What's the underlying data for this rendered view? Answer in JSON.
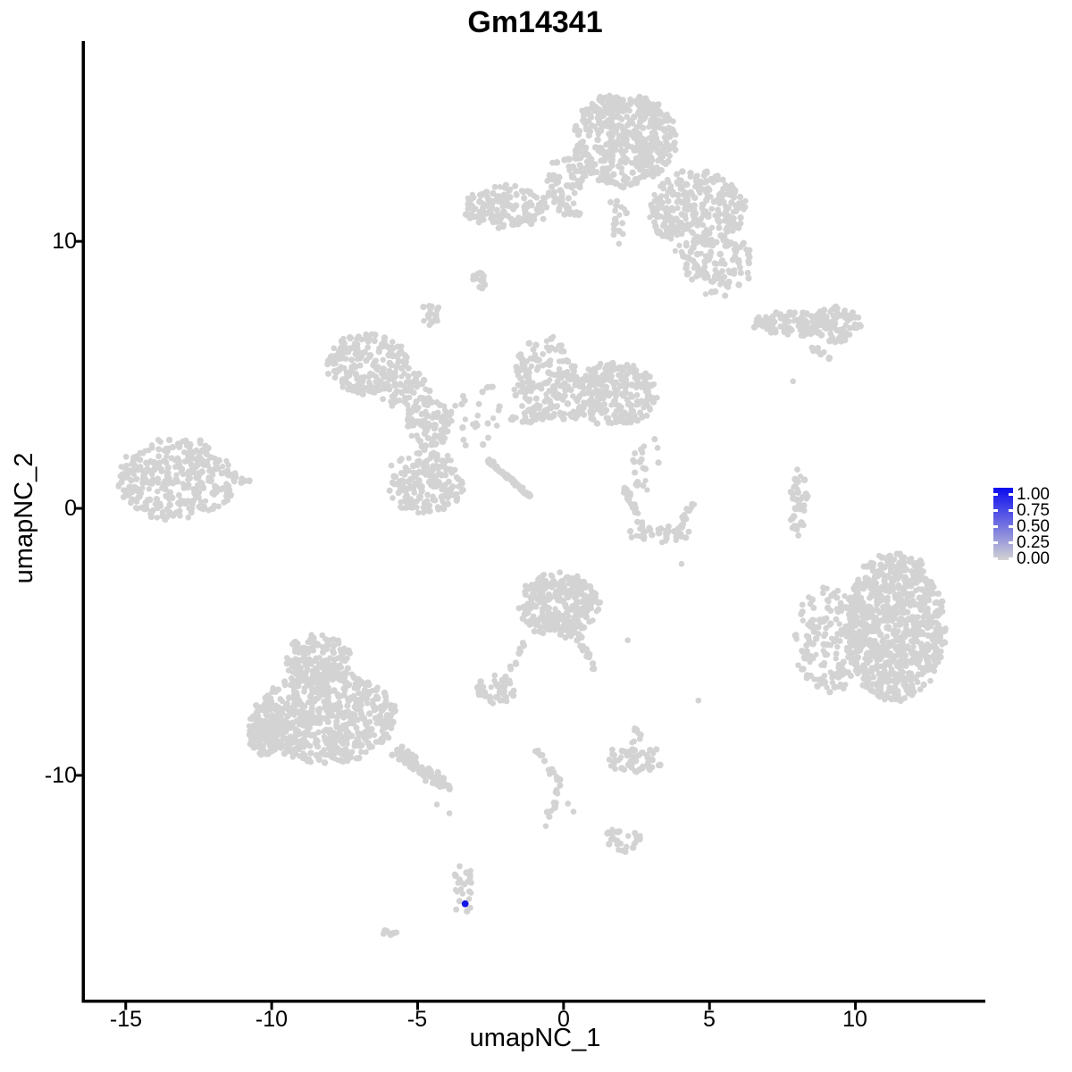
{
  "title": "Gm14341",
  "axes": {
    "x_label": "umapNC_1",
    "y_label": "umapNC_2",
    "x_tick_labels": [
      "-15",
      "-10",
      "-5",
      "0",
      "5",
      "10"
    ],
    "y_tick_labels": [
      "10",
      "0",
      "-10"
    ]
  },
  "legend": {
    "labels": [
      "1.00",
      "0.75",
      "0.50",
      "0.25",
      "0.00"
    ],
    "gradient_top_color": "#0b0bf0",
    "gradient_bottom_color": "#d3d3d3"
  },
  "colors": {
    "point": "#d3d3d3",
    "highlight": "#1717e8",
    "axis": "#000000",
    "background": "#ffffff"
  },
  "chart_data": {
    "type": "scatter",
    "title": "Gm14341",
    "xlabel": "umapNC_1",
    "ylabel": "umapNC_2",
    "xlim": [
      -16.4,
      14.45
    ],
    "ylim": [
      -18.4,
      17.5
    ],
    "x_ticks": [
      -15,
      -10,
      -5,
      0,
      5,
      10
    ],
    "y_ticks": [
      10,
      0,
      -10
    ],
    "grid": false,
    "legend_position": "right",
    "point_color": "#d3d3d3",
    "highlight_color": "#1717e8",
    "highlight_point": {
      "x": -3.37,
      "y": -14.81,
      "value": 1.0
    },
    "clusters": [
      {
        "name": "top-cap",
        "cx": 2.05,
        "cy": 13.8,
        "rx": 1.8,
        "ry": 1.75,
        "n": 460
      },
      {
        "name": "top-cap-left-edge",
        "cx": 0.06,
        "cy": 12.16,
        "rx": 0.66,
        "ry": 1.09,
        "n": 70
      },
      {
        "name": "top-right-lobe",
        "cx": 4.59,
        "cy": 11.19,
        "rx": 1.65,
        "ry": 1.46,
        "n": 290
      },
      {
        "name": "top-right-spray",
        "cx": 5.38,
        "cy": 9.05,
        "rx": 1.15,
        "ry": 1.17,
        "n": 95
      },
      {
        "name": "below-cap-trail",
        "cx": 1.87,
        "cy": 10.79,
        "rx": 0.3,
        "ry": 0.95,
        "n": 18
      },
      {
        "name": "ear-cluster",
        "cx": -2.02,
        "cy": 11.29,
        "rx": 1.45,
        "ry": 0.8,
        "n": 150
      },
      {
        "name": "comma-blob",
        "cx": -2.91,
        "cy": 8.54,
        "rx": 0.34,
        "ry": 0.34,
        "n": 15
      },
      {
        "name": "small-blob-left",
        "cx": -4.56,
        "cy": 7.27,
        "rx": 0.36,
        "ry": 0.45,
        "n": 20
      },
      {
        "name": "west-arm",
        "cx": -6.7,
        "cy": 5.43,
        "rx": 1.4,
        "ry": 1.15,
        "n": 200
      },
      {
        "name": "west-arm-bridge",
        "cx": -5.38,
        "cy": 4.36,
        "rx": 0.85,
        "ry": 0.75,
        "n": 55
      },
      {
        "name": "center-branch",
        "cx": -4.62,
        "cy": 3.18,
        "rx": 0.8,
        "ry": 0.95,
        "n": 90
      },
      {
        "name": "center-sparse",
        "cx": -3.0,
        "cy": 3.5,
        "rx": 0.9,
        "ry": 1.3,
        "n": 30
      },
      {
        "name": "center-lower-x",
        "cx": -4.7,
        "cy": 0.95,
        "rx": 1.3,
        "ry": 1.2,
        "n": 180
      },
      {
        "name": "mid-upper-cluster",
        "cx": -0.64,
        "cy": 4.89,
        "rx": 1.07,
        "ry": 1.54,
        "n": 170
      },
      {
        "name": "mid-right-cluster",
        "cx": 1.8,
        "cy": 4.26,
        "rx": 1.45,
        "ry": 1.17,
        "n": 270
      },
      {
        "name": "below-mid-dots",
        "cx": 2.87,
        "cy": 1.68,
        "rx": 0.55,
        "ry": 1.12,
        "n": 20
      },
      {
        "name": "right-strip",
        "cx": 8.07,
        "cy": 0.17,
        "rx": 0.3,
        "ry": 1.22,
        "n": 38
      },
      {
        "name": "ne-band",
        "cx": 7.92,
        "cy": 6.94,
        "rx": 1.45,
        "ry": 0.42,
        "n": 110
      },
      {
        "name": "ne-band-bulge",
        "cx": 9.33,
        "cy": 6.87,
        "rx": 0.85,
        "ry": 0.67,
        "n": 90
      },
      {
        "name": "far-west",
        "cx": -13.25,
        "cy": 1.1,
        "rx": 2.05,
        "ry": 1.5,
        "n": 330
      },
      {
        "name": "east-large",
        "cx": 11.35,
        "cy": -4.45,
        "rx": 1.7,
        "ry": 2.8,
        "n": 800
      },
      {
        "name": "east-large-fringe",
        "cx": 9.05,
        "cy": -5.0,
        "rx": 1.15,
        "ry": 2.0,
        "n": 160
      },
      {
        "name": "center-comma",
        "cx": -0.15,
        "cy": -3.6,
        "rx": 1.35,
        "ry": 1.2,
        "n": 300
      },
      {
        "name": "small-pair-blob",
        "cx": -2.36,
        "cy": -6.8,
        "rx": 0.7,
        "ry": 0.5,
        "n": 48
      },
      {
        "name": "sw-top-lobe",
        "cx": -8.44,
        "cy": -5.62,
        "rx": 1.1,
        "ry": 0.85,
        "n": 160
      },
      {
        "name": "sw-body",
        "cx": -8.13,
        "cy": -7.85,
        "rx": 2.4,
        "ry": 1.7,
        "n": 620
      },
      {
        "name": "sw-left-bulge",
        "cx": -10.12,
        "cy": -8.3,
        "rx": 0.65,
        "ry": 0.95,
        "n": 120
      },
      {
        "name": "south-hook",
        "cx": 2.45,
        "cy": -9.35,
        "rx": 0.88,
        "ry": 0.6,
        "n": 55
      },
      {
        "name": "south-hook-nub",
        "cx": 2.48,
        "cy": -8.51,
        "rx": 0.2,
        "ry": 0.3,
        "n": 8
      },
      {
        "name": "south-small",
        "cx": 2.05,
        "cy": -12.4,
        "rx": 0.63,
        "ry": 0.45,
        "n": 28
      },
      {
        "name": "smile-bottom",
        "cx": 3.21,
        "cy": -0.9,
        "rx": 1.15,
        "ry": 0.33,
        "n": 45
      },
      {
        "name": "blue-dot-cluster",
        "cx": -3.43,
        "cy": -14.27,
        "rx": 0.4,
        "ry": 0.85,
        "n": 24
      },
      {
        "name": "tiny-oval",
        "cx": -6.02,
        "cy": -15.88,
        "rx": 0.28,
        "ry": 0.16,
        "n": 7
      }
    ],
    "segments": [
      {
        "name": "cap-tail",
        "x1": 3.79,
        "y1": 9.72,
        "x2": 5.47,
        "y2": 8.21,
        "n": 16,
        "jitter": 0.12
      },
      {
        "name": "ear-bridge",
        "x1": -0.4,
        "y1": 11.12,
        "x2": 0.58,
        "y2": 10.99,
        "n": 10,
        "jitter": 0.08
      },
      {
        "name": "diagonal-streak",
        "x1": -2.6,
        "y1": 1.81,
        "x2": -1.13,
        "y2": 0.44,
        "n": 70,
        "jitter": 0.05
      },
      {
        "name": "mid-bridge",
        "x1": -1.87,
        "y1": 3.35,
        "x2": 0.58,
        "y2": 3.52,
        "n": 40,
        "jitter": 0.22
      },
      {
        "name": "band-tail",
        "x1": 8.47,
        "y1": 6.03,
        "x2": 9.14,
        "y2": 5.6,
        "n": 12,
        "jitter": 0.09
      },
      {
        "name": "far-west-tail",
        "x1": -11.6,
        "y1": 1.25,
        "x2": -10.6,
        "y2": 1.0,
        "n": 14,
        "jitter": 0.15
      },
      {
        "name": "sw-tail",
        "x1": -5.75,
        "y1": -9.1,
        "x2": -3.8,
        "y2": -10.55,
        "n": 85,
        "jitter": 0.3
      },
      {
        "name": "comma-tail",
        "x1": 0.43,
        "y1": -4.7,
        "x2": 1.16,
        "y2": -6.23,
        "n": 18,
        "jitter": 0.15
      },
      {
        "name": "pair-chain",
        "x1": -1.19,
        "y1": -4.86,
        "x2": -2.02,
        "y2": -6.37,
        "n": 12,
        "jitter": 0.09
      },
      {
        "name": "south-trail-a",
        "x1": -0.89,
        "y1": -9.05,
        "x2": -0.12,
        "y2": -10.32,
        "n": 16,
        "jitter": 0.1
      },
      {
        "name": "south-trail-b",
        "x1": -0.12,
        "y1": -10.32,
        "x2": -0.64,
        "y2": -12.0,
        "n": 12,
        "jitter": 0.1
      },
      {
        "name": "smile-left",
        "x1": 2.02,
        "y1": 0.77,
        "x2": 2.7,
        "y2": -0.47,
        "n": 22,
        "jitter": 0.14
      },
      {
        "name": "smile-right",
        "x1": 4.46,
        "y1": 0.3,
        "x2": 3.98,
        "y2": -0.74,
        "n": 20,
        "jitter": 0.14
      }
    ],
    "singles": [
      [
        7.86,
        4.76
      ],
      [
        4.04,
        -2.08
      ],
      [
        4.62,
        -7.2
      ],
      [
        -4.34,
        -11.09
      ],
      [
        -3.91,
        -11.42
      ],
      [
        2.2,
        -4.94
      ],
      [
        0.15,
        -11.06
      ],
      [
        0.34,
        -11.36
      ]
    ]
  }
}
